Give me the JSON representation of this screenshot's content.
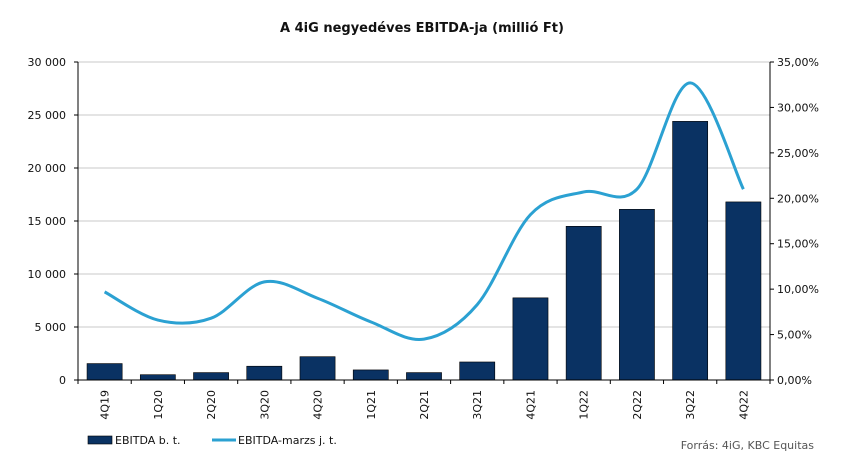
{
  "chart_data": {
    "type": "bar",
    "title": "A 4iG negyedéves EBITDA-ja (millió Ft)",
    "categories": [
      "4Q19",
      "1Q20",
      "2Q20",
      "3Q20",
      "4Q20",
      "1Q21",
      "2Q21",
      "3Q21",
      "4Q21",
      "1Q22",
      "2Q22",
      "3Q22",
      "4Q22"
    ],
    "series": [
      {
        "name": "EBITDA b. t.",
        "type": "bar",
        "axis": "left",
        "color": "#0a3263",
        "values": [
          1550,
          500,
          700,
          1300,
          2200,
          950,
          700,
          1700,
          7750,
          14500,
          16100,
          24400,
          16800
        ]
      },
      {
        "name": "EBITDA-marzs j. t.",
        "type": "line",
        "axis": "right",
        "color": "#2ba1d2",
        "values": [
          9.7,
          6.6,
          6.8,
          10.8,
          9.0,
          6.4,
          4.5,
          8.3,
          18.2,
          20.7,
          21.0,
          32.7,
          21.0
        ]
      }
    ],
    "y_left": {
      "ylim": [
        0,
        30000
      ],
      "ticks": [
        0,
        5000,
        10000,
        15000,
        20000,
        25000,
        30000
      ],
      "tick_labels": [
        "0",
        "5 000",
        "10 000",
        "15 000",
        "20 000",
        "25 000",
        "30 000"
      ]
    },
    "y_right": {
      "ylim": [
        0,
        35
      ],
      "ticks": [
        0,
        5,
        10,
        15,
        20,
        25,
        30,
        35
      ],
      "tick_labels": [
        "0,00%",
        "5,00%",
        "10,00%",
        "15,00%",
        "20,00%",
        "25,00%",
        "30,00%",
        "35,00%"
      ]
    },
    "grid": true,
    "legend": "bottom-left",
    "source": "Forrás: 4iG, KBC Equitas"
  }
}
